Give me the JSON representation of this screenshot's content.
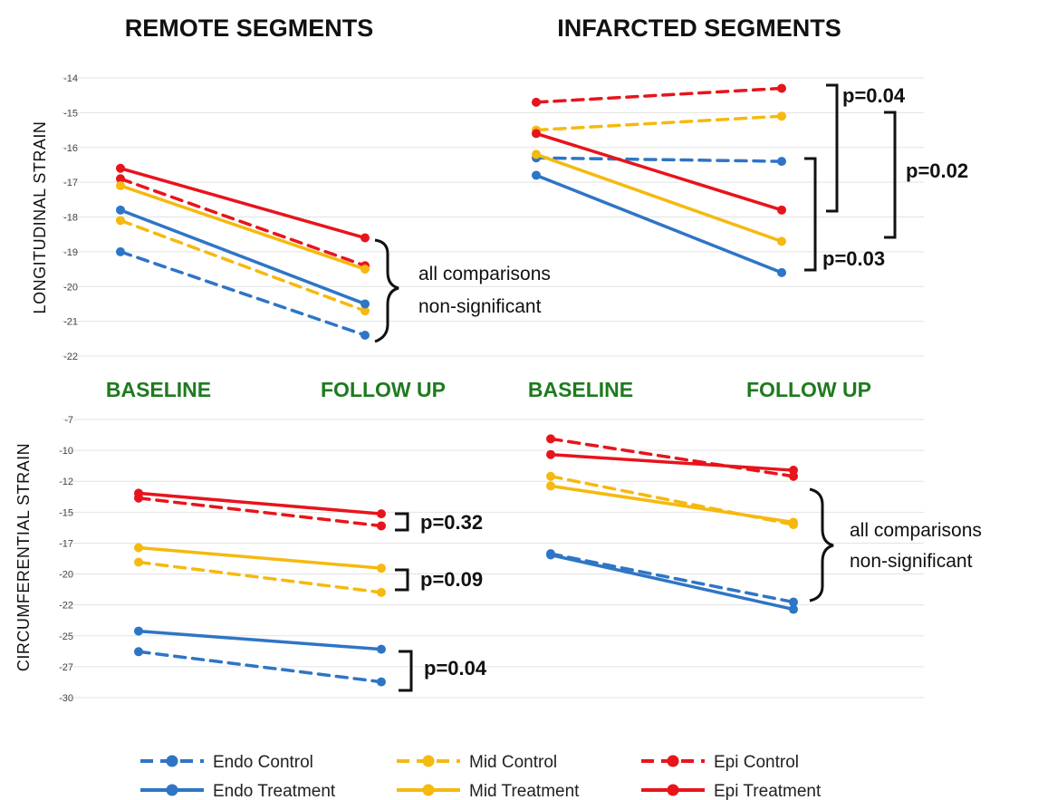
{
  "colors": {
    "Endo": "#2e75c6",
    "Mid": "#f5b90f",
    "Epi": "#e8141b"
  },
  "chart_data": [
    {
      "id": "remote-longitudinal",
      "type": "line",
      "title": "REMOTE SEGMENTS",
      "ylabel": "LONGITUDINAL STRAIN",
      "categories": [
        "BASELINE",
        "FOLLOW UP"
      ],
      "ylim": [
        -22,
        -14
      ],
      "yticks": [
        "-14",
        "-15",
        "-16",
        "-17",
        "-18",
        "-19",
        "-20",
        "-21",
        "-22"
      ],
      "grid": true,
      "series": [
        {
          "name": "Endo Control",
          "group": "Endo",
          "dashed": true,
          "values": [
            -19.0,
            -21.4
          ]
        },
        {
          "name": "Endo Treatment",
          "group": "Endo",
          "dashed": false,
          "values": [
            -17.8,
            -20.5
          ]
        },
        {
          "name": "Mid Control",
          "group": "Mid",
          "dashed": true,
          "values": [
            -18.1,
            -20.7
          ]
        },
        {
          "name": "Mid Treatment",
          "group": "Mid",
          "dashed": false,
          "values": [
            -17.1,
            -19.5
          ]
        },
        {
          "name": "Epi Control",
          "group": "Epi",
          "dashed": true,
          "values": [
            -16.9,
            -19.4
          ]
        },
        {
          "name": "Epi Treatment",
          "group": "Epi",
          "dashed": false,
          "values": [
            -16.6,
            -18.6
          ]
        }
      ],
      "annotations": [
        {
          "line1": "all comparisons",
          "line2": "non-significant"
        }
      ]
    },
    {
      "id": "infarcted-longitudinal",
      "type": "line",
      "title": "INFARCTED SEGMENTS",
      "categories": [
        "BASELINE",
        "FOLLOW UP"
      ],
      "ylim": [
        -22,
        -14
      ],
      "grid": true,
      "series": [
        {
          "name": "Endo Control",
          "group": "Endo",
          "dashed": true,
          "values": [
            -16.3,
            -16.4
          ]
        },
        {
          "name": "Endo Treatment",
          "group": "Endo",
          "dashed": false,
          "values": [
            -16.8,
            -19.6
          ]
        },
        {
          "name": "Mid Control",
          "group": "Mid",
          "dashed": true,
          "values": [
            -15.5,
            -15.1
          ]
        },
        {
          "name": "Mid Treatment",
          "group": "Mid",
          "dashed": false,
          "values": [
            -16.2,
            -18.7
          ]
        },
        {
          "name": "Epi Control",
          "group": "Epi",
          "dashed": true,
          "values": [
            -14.7,
            -14.3
          ]
        },
        {
          "name": "Epi Treatment",
          "group": "Epi",
          "dashed": false,
          "values": [
            -15.6,
            -17.8
          ]
        }
      ],
      "annotations": [
        {
          "label": "p=0.04"
        },
        {
          "label": "p=0.02"
        },
        {
          "label": "p=0.03"
        }
      ]
    },
    {
      "id": "remote-circumferential",
      "type": "line",
      "ylabel": "CIRCUMFERENTIAL  STRAIN",
      "categories": [
        "BASELINE",
        "FOLLOW UP"
      ],
      "ylim": [
        -30,
        -7
      ],
      "yticks": [
        "-7",
        "-10",
        "-12",
        "-15",
        "-17",
        "-20",
        "-22",
        "-25",
        "-27",
        "-30"
      ],
      "grid": true,
      "series": [
        {
          "name": "Endo Control",
          "group": "Endo",
          "dashed": true,
          "values": [
            -26.2,
            -28.7
          ]
        },
        {
          "name": "Endo Treatment",
          "group": "Endo",
          "dashed": false,
          "values": [
            -24.5,
            -26.0
          ]
        },
        {
          "name": "Mid Control",
          "group": "Mid",
          "dashed": true,
          "values": [
            -18.8,
            -21.3
          ]
        },
        {
          "name": "Mid Treatment",
          "group": "Mid",
          "dashed": false,
          "values": [
            -17.6,
            -19.3
          ]
        },
        {
          "name": "Epi Control",
          "group": "Epi",
          "dashed": true,
          "values": [
            -13.5,
            -15.8
          ]
        },
        {
          "name": "Epi Treatment",
          "group": "Epi",
          "dashed": false,
          "values": [
            -13.1,
            -14.8
          ]
        }
      ],
      "annotations": [
        {
          "label": "p=0.32"
        },
        {
          "label": "p=0.09"
        },
        {
          "label": "p=0.04"
        }
      ]
    },
    {
      "id": "infarcted-circumferential",
      "type": "line",
      "categories": [
        "BASELINE",
        "FOLLOW UP"
      ],
      "ylim": [
        -30,
        -7
      ],
      "grid": true,
      "series": [
        {
          "name": "Endo Control",
          "group": "Endo",
          "dashed": true,
          "values": [
            -18.1,
            -22.1
          ]
        },
        {
          "name": "Endo Treatment",
          "group": "Endo",
          "dashed": false,
          "values": [
            -18.2,
            -22.7
          ]
        },
        {
          "name": "Mid Control",
          "group": "Mid",
          "dashed": true,
          "values": [
            -11.7,
            -15.7
          ]
        },
        {
          "name": "Mid Treatment",
          "group": "Mid",
          "dashed": false,
          "values": [
            -12.5,
            -15.5
          ]
        },
        {
          "name": "Epi Control",
          "group": "Epi",
          "dashed": true,
          "values": [
            -8.6,
            -11.7
          ]
        },
        {
          "name": "Epi Treatment",
          "group": "Epi",
          "dashed": false,
          "values": [
            -9.9,
            -11.2
          ]
        }
      ],
      "annotations": [
        {
          "line1": "all comparisons",
          "line2": "non-significant"
        }
      ]
    }
  ],
  "legend": [
    {
      "name": "Endo Control",
      "group": "Endo",
      "dashed": true
    },
    {
      "name": "Mid Control",
      "group": "Mid",
      "dashed": true
    },
    {
      "name": "Epi Control",
      "group": "Epi",
      "dashed": true
    },
    {
      "name": "Endo Treatment",
      "group": "Endo",
      "dashed": false
    },
    {
      "name": "Mid Treatment",
      "group": "Mid",
      "dashed": false
    },
    {
      "name": "Epi Treatment",
      "group": "Epi",
      "dashed": false
    }
  ]
}
